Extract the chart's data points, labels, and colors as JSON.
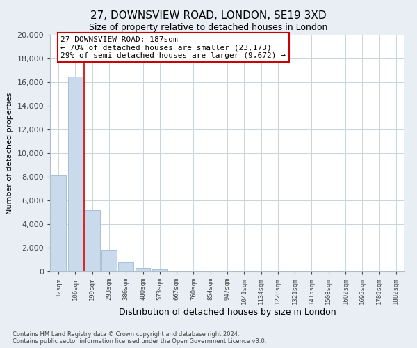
{
  "title": "27, DOWNSVIEW ROAD, LONDON, SE19 3XD",
  "subtitle": "Size of property relative to detached houses in London",
  "xlabel": "Distribution of detached houses by size in London",
  "ylabel": "Number of detached properties",
  "bar_labels": [
    "12sqm",
    "106sqm",
    "199sqm",
    "293sqm",
    "386sqm",
    "480sqm",
    "573sqm",
    "667sqm",
    "760sqm",
    "854sqm",
    "947sqm",
    "1041sqm",
    "1134sqm",
    "1228sqm",
    "1321sqm",
    "1415sqm",
    "1508sqm",
    "1602sqm",
    "1695sqm",
    "1789sqm",
    "1882sqm"
  ],
  "bar_values": [
    8100,
    16500,
    5200,
    1800,
    750,
    280,
    180,
    0,
    0,
    0,
    0,
    0,
    0,
    0,
    0,
    0,
    0,
    0,
    0,
    0,
    0
  ],
  "bar_color": "#c8daec",
  "bar_edge_color": "#a8c0d8",
  "ylim": [
    0,
    20000
  ],
  "yticks": [
    0,
    2000,
    4000,
    6000,
    8000,
    10000,
    12000,
    14000,
    16000,
    18000,
    20000
  ],
  "property_line_x": 1.5,
  "property_line_color": "#cc0000",
  "annotation_box_title": "27 DOWNSVIEW ROAD: 187sqm",
  "annotation_line1": "← 70% of detached houses are smaller (23,173)",
  "annotation_line2": "29% of semi-detached houses are larger (9,672) →",
  "annotation_box_color": "#ffffff",
  "annotation_box_edge": "#cc0000",
  "footer_line1": "Contains HM Land Registry data © Crown copyright and database right 2024.",
  "footer_line2": "Contains public sector information licensed under the Open Government Licence v3.0.",
  "background_color": "#e8eef4",
  "plot_background_color": "#ffffff",
  "grid_color": "#c8d4dc"
}
